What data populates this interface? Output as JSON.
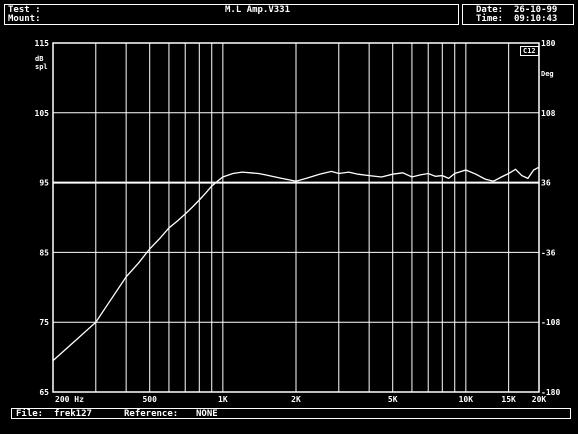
{
  "header": {
    "test_label": "Test :",
    "test_value": "",
    "title": "M.L Amp.V331",
    "mount_label": "Mount:",
    "date_label": "Date:",
    "date_value": "26-10-99",
    "time_label": "Time:",
    "time_value": "09:10:43"
  },
  "footer": {
    "file_label": "File:",
    "file_value": "frek127",
    "reference_label": "Reference:",
    "reference_value": "NONE"
  },
  "colors": {
    "background": "#000000",
    "foreground": "#ffffff"
  },
  "chart_data": {
    "type": "line",
    "xscale": "log",
    "xlim": [
      200,
      20000
    ],
    "x_tick_labels": [
      {
        "x": 200,
        "label": "200 Hz"
      },
      {
        "x": 500,
        "label": "500"
      },
      {
        "x": 1000,
        "label": "1K"
      },
      {
        "x": 2000,
        "label": "2K"
      },
      {
        "x": 5000,
        "label": "5K"
      },
      {
        "x": 10000,
        "label": "10K"
      },
      {
        "x": 15000,
        "label": "15K"
      },
      {
        "x": 20000,
        "label": "20K"
      }
    ],
    "x_gridlines": [
      200,
      300,
      400,
      500,
      600,
      700,
      800,
      900,
      1000,
      2000,
      3000,
      4000,
      5000,
      6000,
      7000,
      8000,
      9000,
      10000,
      15000,
      20000
    ],
    "ylim": [
      65,
      115
    ],
    "y_left_top_label": "115",
    "y_left_unit": "dB\nspl",
    "y_left_ticks": [
      {
        "y": 115,
        "label": "115"
      },
      {
        "y": 105,
        "label": "105"
      },
      {
        "y": 95,
        "label": "95"
      },
      {
        "y": 85,
        "label": "85"
      },
      {
        "y": 75,
        "label": "75"
      },
      {
        "y": 65,
        "label": "65"
      }
    ],
    "y_right_ticks": [
      {
        "y": 115,
        "label": "180"
      },
      {
        "y": 105,
        "label": "108"
      },
      {
        "y": 95,
        "label": "36"
      },
      {
        "y": 85,
        "label": "-36"
      },
      {
        "y": 75,
        "label": "-108"
      },
      {
        "y": 65,
        "label": "-180"
      }
    ],
    "y_right_unit": "Deg",
    "legend_box": "C12",
    "series": [
      {
        "x": [
          200,
          250,
          300,
          350,
          400,
          450,
          500,
          550,
          600,
          650,
          700,
          750,
          800,
          850,
          900,
          950,
          1000,
          1100,
          1200,
          1300,
          1400,
          1500,
          1700,
          2000,
          2200,
          2500,
          2800,
          3000,
          3300,
          3600,
          4000,
          4500,
          5000,
          5500,
          6000,
          6500,
          7000,
          7500,
          8000,
          8500,
          9000,
          10000,
          11000,
          12000,
          13000,
          14000,
          15000,
          16000,
          17000,
          18000,
          19000,
          20000
        ],
        "y": [
          69.5,
          72.5,
          75,
          78.5,
          81.5,
          83.5,
          85.5,
          87,
          88.5,
          89.5,
          90.5,
          91.5,
          92.5,
          93.5,
          94.5,
          95.2,
          95.8,
          96.3,
          96.5,
          96.4,
          96.3,
          96.1,
          95.7,
          95.2,
          95.6,
          96.2,
          96.6,
          96.3,
          96.5,
          96.2,
          96.0,
          95.8,
          96.2,
          96.4,
          95.8,
          96.1,
          96.3,
          95.9,
          96.0,
          95.6,
          96.3,
          96.8,
          96.2,
          95.5,
          95.2,
          95.8,
          96.3,
          96.9,
          96.0,
          95.6,
          96.8,
          97.2
        ]
      }
    ]
  }
}
